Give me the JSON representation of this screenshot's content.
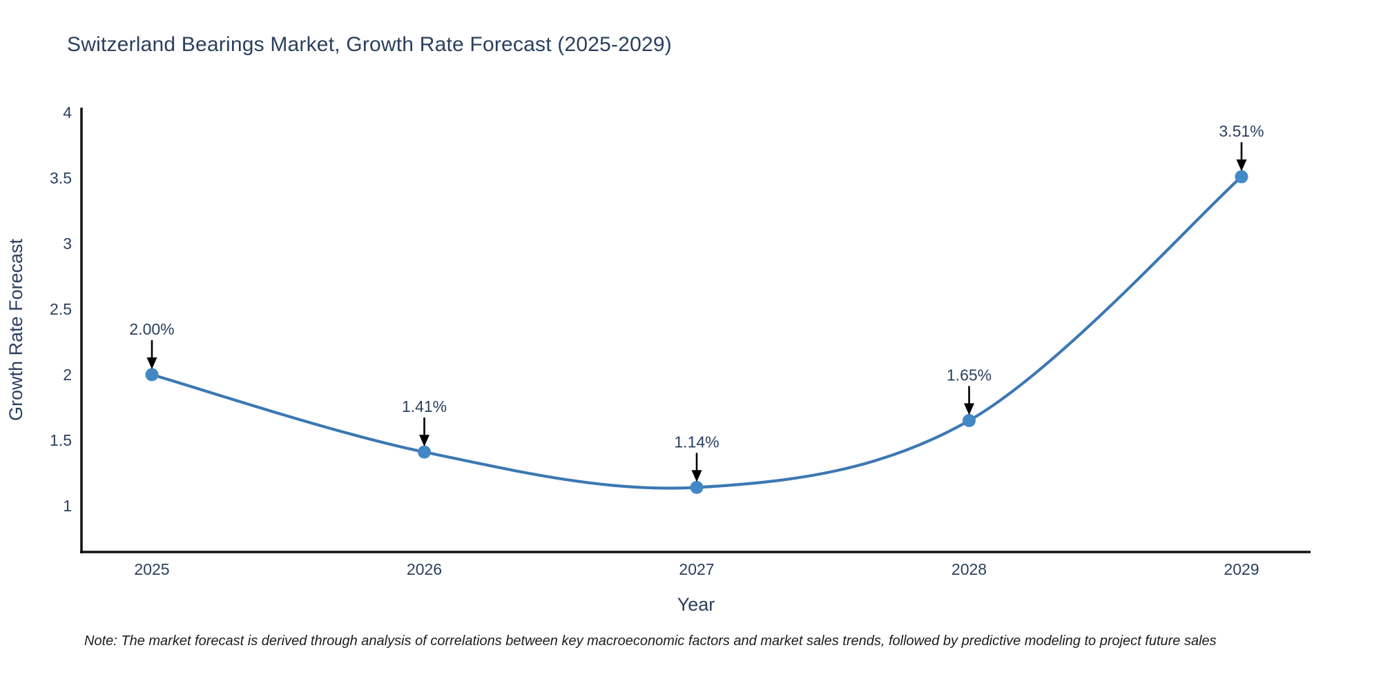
{
  "title": "Switzerland Bearings Market, Growth Rate Forecast (2025-2029)",
  "note": "Note: The market forecast is derived through analysis of correlations between key macroeconomic factors and market sales trends, followed by predictive modeling to project future sales",
  "chart_data": {
    "type": "line",
    "title": "Switzerland Bearings Market, Growth Rate Forecast (2025-2029)",
    "xlabel": "Year",
    "ylabel": "Growth Rate Forecast",
    "x": [
      "2025",
      "2026",
      "2027",
      "2028",
      "2029"
    ],
    "values": [
      2.0,
      1.41,
      1.14,
      1.65,
      3.51
    ],
    "point_labels": [
      "2.00%",
      "1.41%",
      "1.14%",
      "1.65%",
      "3.51%"
    ],
    "yticks": [
      1,
      1.5,
      2,
      2.5,
      3,
      3.5,
      4
    ],
    "ylim": [
      0.65,
      4.07
    ],
    "line_shape": "spline",
    "grid": false,
    "legend": "none",
    "colors": {
      "line": "#3c78b3",
      "marker": "#4388c6",
      "text": "#2a3f5f",
      "axis": "#111111",
      "arrow": "#000000",
      "note_text": "#1c1c1c"
    }
  }
}
